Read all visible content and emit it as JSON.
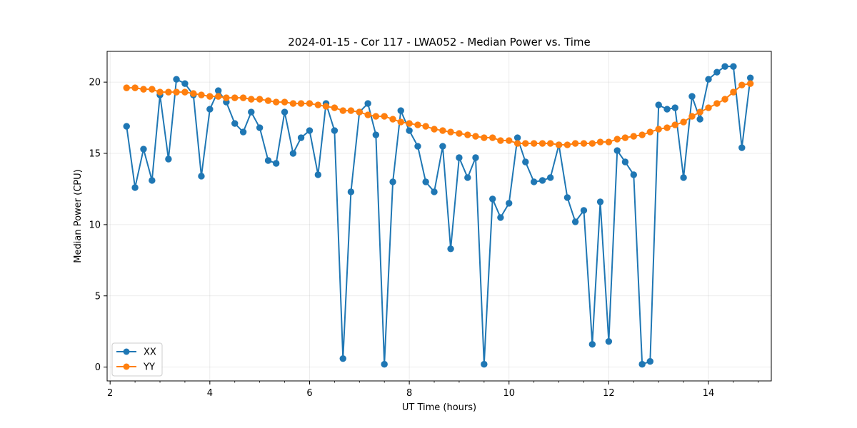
{
  "chart_data": {
    "type": "line",
    "title": "2024-01-15 - Cor 117 - LWA052 - Median Power vs. Time",
    "xlabel": "UT Time (hours)",
    "ylabel": "Median Power (CPU)",
    "xlim": [
      1.94,
      15.26
    ],
    "ylim": [
      -0.97,
      22.16
    ],
    "xticks": [
      2,
      4,
      6,
      8,
      10,
      12,
      14
    ],
    "xtick_labels": [
      "2",
      "4",
      "6",
      "8",
      "10",
      "12",
      "14"
    ],
    "yticks": [
      0,
      5,
      10,
      15,
      20
    ],
    "ytick_labels": [
      "0",
      "5",
      "10",
      "15",
      "20"
    ],
    "grid": true,
    "legend_position": "lower-left",
    "x": [
      2.33,
      2.5,
      2.67,
      2.84,
      3.0,
      3.17,
      3.33,
      3.5,
      3.67,
      3.83,
      4.0,
      4.17,
      4.33,
      4.5,
      4.67,
      4.83,
      5.0,
      5.17,
      5.33,
      5.5,
      5.67,
      5.83,
      6.0,
      6.17,
      6.33,
      6.5,
      6.67,
      6.83,
      7.0,
      7.17,
      7.33,
      7.5,
      7.67,
      7.83,
      8.0,
      8.17,
      8.33,
      8.5,
      8.67,
      8.83,
      9.0,
      9.17,
      9.33,
      9.5,
      9.67,
      9.83,
      10.0,
      10.17,
      10.33,
      10.5,
      10.67,
      10.83,
      11.0,
      11.17,
      11.33,
      11.5,
      11.67,
      11.83,
      12.0,
      12.17,
      12.33,
      12.5,
      12.67,
      12.83,
      13.0,
      13.17,
      13.33,
      13.5,
      13.67,
      13.83,
      14.0,
      14.17,
      14.33,
      14.5,
      14.67,
      14.84
    ],
    "series": [
      {
        "name": "XX",
        "color": "#1f77b4",
        "values": [
          16.9,
          12.6,
          15.3,
          13.1,
          19.1,
          14.6,
          20.2,
          19.9,
          19.1,
          13.4,
          18.1,
          19.4,
          18.6,
          17.1,
          16.5,
          17.9,
          16.8,
          14.5,
          14.3,
          17.9,
          15.0,
          16.1,
          16.6,
          13.5,
          18.5,
          16.6,
          0.6,
          12.3,
          17.9,
          18.5,
          16.3,
          0.2,
          13.0,
          18.0,
          16.6,
          15.5,
          13.0,
          12.3,
          15.5,
          8.3,
          14.7,
          13.3,
          14.7,
          0.2,
          11.8,
          10.5,
          11.5,
          16.1,
          14.4,
          13.0,
          13.1,
          13.3,
          15.6,
          11.9,
          10.2,
          11.0,
          1.6,
          11.6,
          1.8,
          15.2,
          14.4,
          13.5,
          0.2,
          0.4,
          18.4,
          18.1,
          18.2,
          13.3,
          19.0,
          17.4,
          20.2,
          20.7,
          21.1,
          21.1,
          15.4,
          20.3
        ]
      },
      {
        "name": "YY",
        "color": "#ff7f0e",
        "values": [
          19.6,
          19.6,
          19.5,
          19.5,
          19.3,
          19.3,
          19.3,
          19.3,
          19.2,
          19.1,
          19.0,
          19.0,
          18.9,
          18.9,
          18.9,
          18.8,
          18.8,
          18.7,
          18.6,
          18.6,
          18.5,
          18.5,
          18.5,
          18.4,
          18.3,
          18.2,
          18.0,
          18.0,
          17.9,
          17.7,
          17.6,
          17.6,
          17.4,
          17.2,
          17.1,
          17.0,
          16.9,
          16.7,
          16.6,
          16.5,
          16.4,
          16.3,
          16.2,
          16.1,
          16.1,
          15.9,
          15.9,
          15.7,
          15.7,
          15.7,
          15.7,
          15.7,
          15.6,
          15.6,
          15.7,
          15.7,
          15.7,
          15.8,
          15.8,
          16.0,
          16.1,
          16.2,
          16.3,
          16.5,
          16.7,
          16.8,
          17.0,
          17.2,
          17.6,
          17.9,
          18.2,
          18.5,
          18.8,
          19.3,
          19.8,
          19.9
        ]
      }
    ]
  }
}
